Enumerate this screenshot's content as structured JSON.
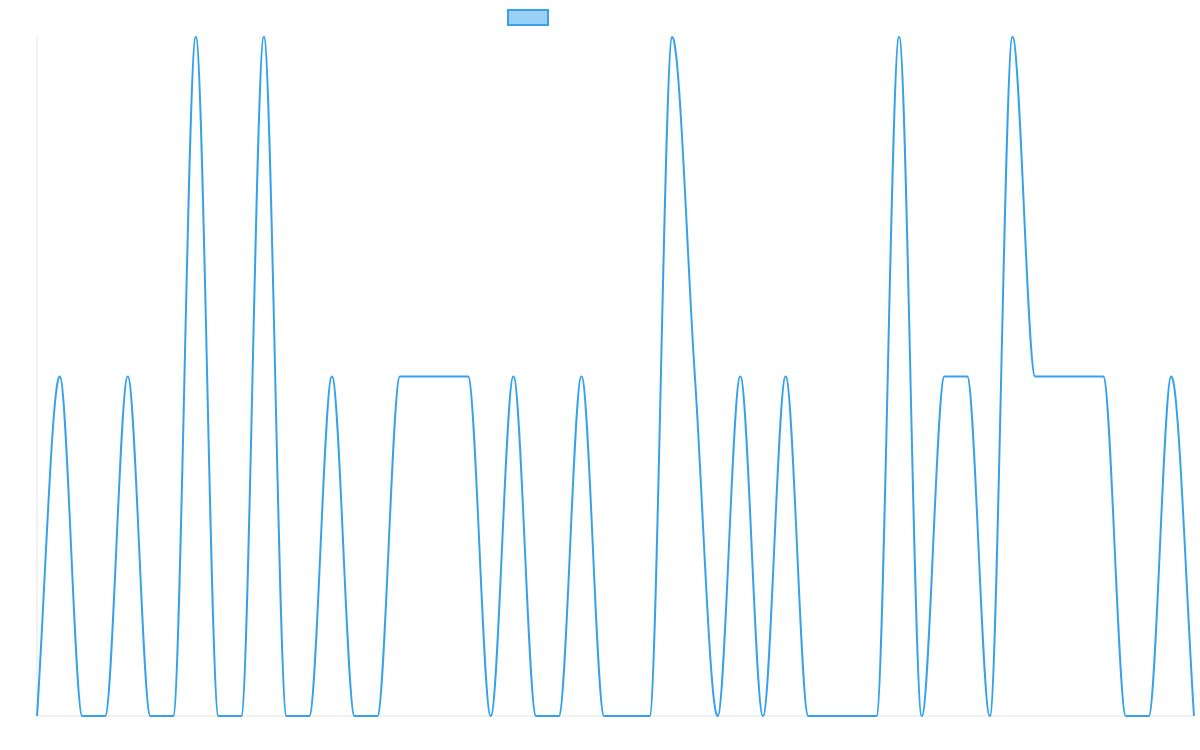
{
  "chart_data": {
    "type": "line",
    "title": "",
    "xlabel": "",
    "ylabel": "",
    "x": [
      0,
      1,
      2,
      3,
      4,
      5,
      6,
      7,
      8,
      9,
      10,
      11,
      12,
      13,
      14,
      15,
      16,
      17,
      18,
      19,
      20,
      21,
      22,
      23,
      24,
      25,
      26,
      27,
      28,
      29,
      30,
      31,
      32,
      33,
      34,
      35,
      36,
      37,
      38,
      39,
      40,
      41,
      42,
      43,
      44,
      45,
      46,
      47,
      48,
      49,
      50,
      51
    ],
    "series": [
      {
        "name": "",
        "values": [
          0,
          1,
          0,
          0,
          1,
          0,
          0,
          2,
          0,
          0,
          2,
          0,
          0,
          1,
          0,
          0,
          1,
          1,
          1,
          1,
          0,
          1,
          0,
          0,
          1,
          0,
          0,
          0,
          2,
          1,
          0,
          1,
          0,
          1,
          0,
          0,
          0,
          0,
          2,
          0,
          1,
          1,
          0,
          2,
          1,
          1,
          1,
          1,
          0,
          0,
          1,
          0
        ]
      }
    ],
    "ylim": [
      0,
      2
    ],
    "grid": false,
    "legend": "top-center",
    "colors": {
      "line": "#36a2eb",
      "legend_fill": "#9ad0f5",
      "axis": "#e5e5e5"
    }
  }
}
